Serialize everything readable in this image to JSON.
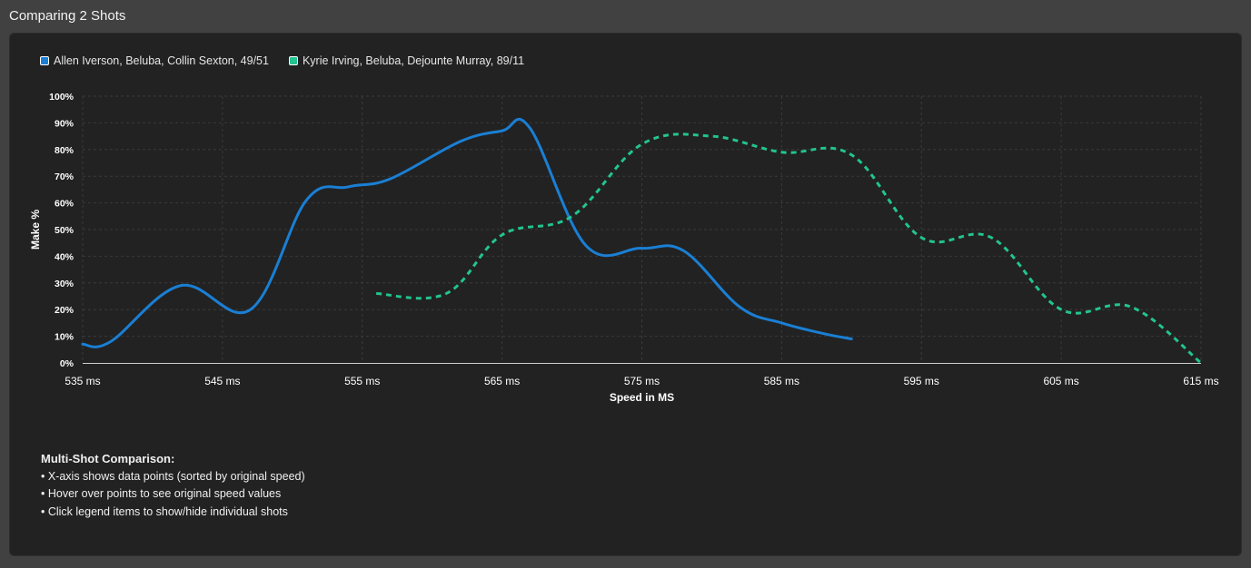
{
  "page": {
    "title": "Comparing 2 Shots"
  },
  "colors": {
    "series1": "#1a7fd4",
    "series2": "#22c48f",
    "background": "#222222"
  },
  "notes": {
    "heading": "Multi-Shot Comparison:",
    "items": [
      "• X-axis shows data points (sorted by original speed)",
      "• Hover over points to see original speed values",
      "• Click legend items to show/hide individual shots"
    ]
  },
  "chart_data": {
    "type": "line",
    "title": "",
    "xlabel": "Speed in MS",
    "ylabel": "Make %",
    "xlim": [
      535,
      615
    ],
    "ylim": [
      0,
      100
    ],
    "x_ticks": [
      {
        "value": 535,
        "label": "535 ms"
      },
      {
        "value": 545,
        "label": "545 ms"
      },
      {
        "value": 555,
        "label": "555 ms"
      },
      {
        "value": 565,
        "label": "565 ms"
      },
      {
        "value": 575,
        "label": "575 ms"
      },
      {
        "value": 585,
        "label": "585 ms"
      },
      {
        "value": 595,
        "label": "595 ms"
      },
      {
        "value": 605,
        "label": "605 ms"
      },
      {
        "value": 615,
        "label": "615 ms"
      }
    ],
    "y_ticks": [
      {
        "value": 0,
        "label": "0%"
      },
      {
        "value": 10,
        "label": "10%"
      },
      {
        "value": 20,
        "label": "20%"
      },
      {
        "value": 30,
        "label": "30%"
      },
      {
        "value": 40,
        "label": "40%"
      },
      {
        "value": 50,
        "label": "50%"
      },
      {
        "value": 60,
        "label": "60%"
      },
      {
        "value": 70,
        "label": "70%"
      },
      {
        "value": 80,
        "label": "80%"
      },
      {
        "value": 90,
        "label": "90%"
      },
      {
        "value": 100,
        "label": "100%"
      }
    ],
    "grid": true,
    "legend_position": "top-left",
    "series": [
      {
        "name": "Allen Iverson, Beluba, Collin Sexton, 49/51",
        "color": "#1a7fd4",
        "style": "solid",
        "points": [
          {
            "x": 535,
            "y": 7
          },
          {
            "x": 537,
            "y": 8
          },
          {
            "x": 542,
            "y": 29
          },
          {
            "x": 547,
            "y": 20
          },
          {
            "x": 551,
            "y": 61
          },
          {
            "x": 554,
            "y": 66
          },
          {
            "x": 557,
            "y": 69
          },
          {
            "x": 562,
            "y": 83
          },
          {
            "x": 565,
            "y": 87
          },
          {
            "x": 567,
            "y": 88
          },
          {
            "x": 571,
            "y": 44
          },
          {
            "x": 575,
            "y": 43
          },
          {
            "x": 578,
            "y": 42
          },
          {
            "x": 582,
            "y": 21
          },
          {
            "x": 585,
            "y": 15
          },
          {
            "x": 588,
            "y": 11
          },
          {
            "x": 590,
            "y": 9
          }
        ]
      },
      {
        "name": "Kyrie Irving, Beluba, Dejounte Murray, 89/11",
        "color": "#22c48f",
        "style": "dashed",
        "points": [
          {
            "x": 556,
            "y": 26
          },
          {
            "x": 561,
            "y": 26
          },
          {
            "x": 565,
            "y": 48
          },
          {
            "x": 570,
            "y": 55
          },
          {
            "x": 575,
            "y": 82
          },
          {
            "x": 580,
            "y": 85
          },
          {
            "x": 585,
            "y": 79
          },
          {
            "x": 590,
            "y": 78
          },
          {
            "x": 595,
            "y": 47
          },
          {
            "x": 600,
            "y": 47
          },
          {
            "x": 605,
            "y": 20
          },
          {
            "x": 610,
            "y": 21
          },
          {
            "x": 615,
            "y": 0
          }
        ]
      }
    ]
  }
}
